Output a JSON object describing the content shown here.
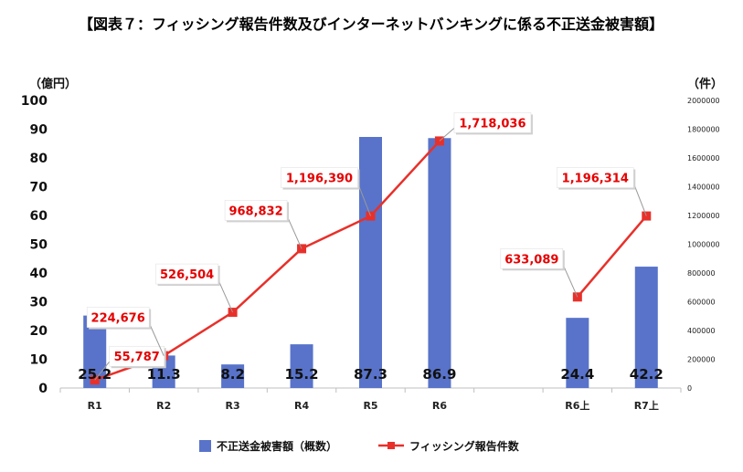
{
  "chart_data": {
    "type": "bar",
    "title": "【図表７：フィッシング報告件数及びインターネットバンキングに係る不正送金被害額】",
    "categories": [
      "R1",
      "R2",
      "R3",
      "R4",
      "R5",
      "R6",
      "",
      "R6上",
      "R7上"
    ],
    "left_axis": {
      "unit_label": "（億円）",
      "ylim": [
        0,
        100
      ],
      "ticks": [
        "0",
        "10",
        "20",
        "30",
        "40",
        "50",
        "60",
        "70",
        "80",
        "90",
        "100"
      ]
    },
    "right_axis": {
      "unit_label": "（件）",
      "ylim": [
        0,
        2000000
      ],
      "ticks": [
        "0",
        "200000",
        "400000",
        "600000",
        "800000",
        "1000000",
        "1200000",
        "1400000",
        "1600000",
        "1800000",
        "2000000"
      ]
    },
    "series": [
      {
        "name": "不正送金被害額（概数）",
        "type": "bar",
        "axis": "left",
        "color": "#5873c9",
        "values": [
          25.2,
          11.3,
          8.2,
          15.2,
          87.3,
          86.9,
          null,
          24.4,
          42.2
        ],
        "labels": [
          "25.2",
          "11.3",
          "8.2",
          "15.2",
          "87.3",
          "86.9",
          "",
          "24.4",
          "42.2"
        ]
      },
      {
        "name": "フィッシング報告件数",
        "type": "line",
        "axis": "right",
        "color": "#e8302a",
        "values": [
          55787,
          224676,
          526504,
          968832,
          1196390,
          1718036,
          null,
          633089,
          1196314
        ],
        "labels": [
          "55,787",
          "224,676",
          "526,504",
          "968,832",
          "1,196,390",
          "1,718,036",
          "",
          "633,089",
          "1,196,314"
        ]
      }
    ]
  }
}
